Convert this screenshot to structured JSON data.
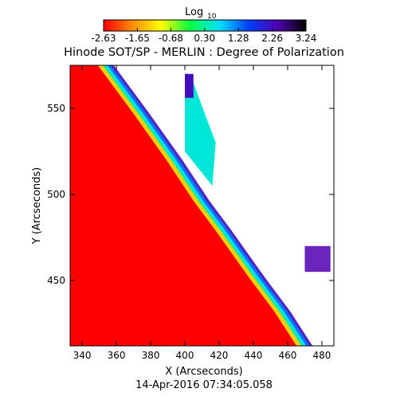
{
  "colorbar": {
    "label": "Log",
    "label_sub": "10",
    "ticks": [
      "-2.63",
      "-1.65",
      "-0.68",
      "0.30",
      "1.28",
      "2.26",
      "3.24"
    ],
    "range": [
      -2.63,
      3.24
    ],
    "colormap": [
      "#ff0000",
      "#ff8c00",
      "#ffff00",
      "#00ff40",
      "#00e0ff",
      "#0040ff",
      "#5000b0",
      "#000000"
    ]
  },
  "chart_data": {
    "type": "heatmap",
    "title": "Hinode SOT/SP - MERLIN : Degree of Polarization",
    "xlabel": "X (Arcseconds)",
    "ylabel": "Y (Arcseconds)",
    "subtitle": "14-Apr-2016 07:34:05.058",
    "xlim": [
      333,
      487
    ],
    "ylim": [
      412,
      575
    ],
    "x_ticks": [
      340,
      360,
      380,
      400,
      420,
      440,
      460,
      480
    ],
    "y_ticks": [
      450,
      500,
      550
    ],
    "limb": {
      "points": [
        [
          352,
          575
        ],
        [
          372,
          548
        ],
        [
          392,
          520
        ],
        [
          408,
          496
        ],
        [
          420,
          480
        ],
        [
          440,
          452
        ],
        [
          455,
          432
        ],
        [
          468,
          412
        ]
      ],
      "value_disk": -2.63,
      "value_limb": 0.3,
      "value_offlimb": 1.28,
      "blue_fringe": 2.26,
      "spicule_region": {
        "x": [
          400,
          418
        ],
        "y": [
          505,
          570
        ]
      }
    },
    "offlimb_specks": {
      "x": [
        470,
        485
      ],
      "y": [
        455,
        470
      ]
    }
  }
}
